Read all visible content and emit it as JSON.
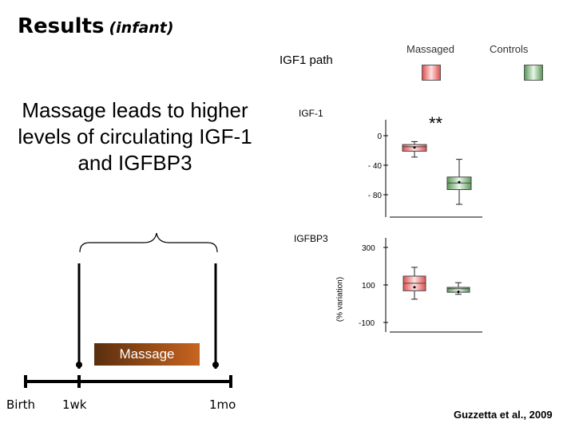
{
  "slide": {
    "title": "Results",
    "title_sub": "(infant)",
    "headline": "Massage leads to higher levels of circulating IGF-1 and IGFBP3",
    "path_label": "IGF1 path",
    "citation": "Guzzetta et al., 2009"
  },
  "legend": {
    "massaged": "Massaged",
    "controls": "Controls",
    "massaged_color": "#e05050",
    "controls_color": "#5a9a5a"
  },
  "timeline": {
    "birth": "Birth",
    "week": "1wk",
    "month": "1mo",
    "massage": "Massage"
  },
  "chart_data": [
    {
      "type": "box",
      "title": "IGF-1",
      "significance": "**",
      "ylim": [
        -100,
        10
      ],
      "yticks": [
        0,
        -40,
        -80
      ],
      "ytick_labels": [
        "0",
        "- 40",
        "- 80"
      ],
      "series": [
        {
          "name": "Massaged",
          "whisker_low": -29,
          "q1": -21,
          "median": -15,
          "q3": -12,
          "whisker_high": -8,
          "mean": -16
        },
        {
          "name": "Controls",
          "whisker_low": -93,
          "q1": -73,
          "median": -64,
          "q3": -56,
          "whisker_high": -32,
          "mean": -63
        }
      ]
    },
    {
      "type": "box",
      "title": "IGFBP3",
      "ylabel": "(% variation)",
      "ylim": [
        -130,
        300
      ],
      "yticks": [
        300,
        100,
        -100
      ],
      "ytick_labels": [
        "300",
        "100",
        "-100"
      ],
      "series": [
        {
          "name": "Massaged",
          "whisker_low": 24,
          "q1": 69,
          "median": 109,
          "q3": 147,
          "whisker_high": 194,
          "mean": 88
        },
        {
          "name": "Controls",
          "whisker_low": 50,
          "q1": 61,
          "median": 80,
          "q3": 87,
          "whisker_high": 112,
          "mean": 64
        }
      ]
    }
  ]
}
